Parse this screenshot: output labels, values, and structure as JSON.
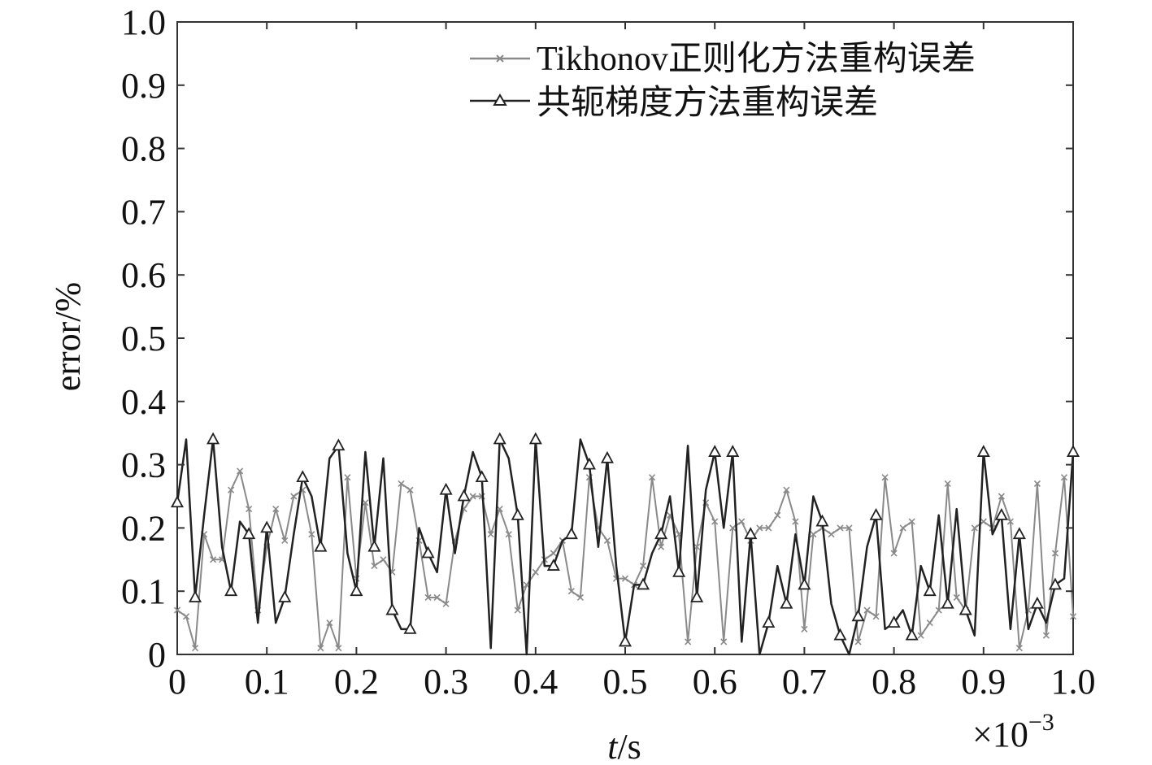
{
  "chart_data": {
    "type": "line",
    "xlabel_italic": "t",
    "xlabel_unit": "/s",
    "ylabel": "error/%",
    "x_multiplier": {
      "base": "×10",
      "exp": "−3"
    },
    "xlim": [
      0,
      1.0
    ],
    "ylim": [
      0,
      1.0
    ],
    "grid": false,
    "legend_position": "top-right",
    "x_ticks": [
      "0",
      "0.1",
      "0.2",
      "0.3",
      "0.4",
      "0.5",
      "0.6",
      "0.7",
      "0.8",
      "0.9",
      "1.0"
    ],
    "y_ticks": [
      "0",
      "0.1",
      "0.2",
      "0.3",
      "0.4",
      "0.5",
      "0.6",
      "0.7",
      "0.8",
      "0.9",
      "1.0"
    ],
    "series": [
      {
        "name": "Tikhonov正则化方法重构误差",
        "color": "#8a8a8a",
        "marker": "x",
        "x": [
          0,
          0.01,
          0.02,
          0.03,
          0.04,
          0.05,
          0.06,
          0.07,
          0.08,
          0.09,
          0.1,
          0.11,
          0.12,
          0.13,
          0.14,
          0.15,
          0.16,
          0.17,
          0.18,
          0.19,
          0.2,
          0.21,
          0.22,
          0.23,
          0.24,
          0.25,
          0.26,
          0.27,
          0.28,
          0.29,
          0.3,
          0.31,
          0.32,
          0.33,
          0.34,
          0.35,
          0.36,
          0.37,
          0.38,
          0.39,
          0.4,
          0.41,
          0.42,
          0.43,
          0.44,
          0.45,
          0.46,
          0.47,
          0.48,
          0.49,
          0.5,
          0.51,
          0.52,
          0.53,
          0.54,
          0.55,
          0.56,
          0.57,
          0.58,
          0.59,
          0.6,
          0.61,
          0.62,
          0.63,
          0.64,
          0.65,
          0.66,
          0.67,
          0.68,
          0.69,
          0.7,
          0.71,
          0.72,
          0.73,
          0.74,
          0.75,
          0.76,
          0.77,
          0.78,
          0.79,
          0.8,
          0.81,
          0.82,
          0.83,
          0.84,
          0.85,
          0.86,
          0.87,
          0.88,
          0.89,
          0.9,
          0.91,
          0.92,
          0.93,
          0.94,
          0.95,
          0.96,
          0.97,
          0.98,
          0.99,
          1.0
        ],
        "values": [
          0.07,
          0.06,
          0.01,
          0.19,
          0.15,
          0.15,
          0.26,
          0.29,
          0.23,
          0.07,
          0.17,
          0.23,
          0.18,
          0.25,
          0.26,
          0.19,
          0.01,
          0.05,
          0.01,
          0.28,
          0.12,
          0.24,
          0.14,
          0.15,
          0.13,
          0.27,
          0.26,
          0.18,
          0.09,
          0.09,
          0.08,
          0.18,
          0.23,
          0.25,
          0.25,
          0.19,
          0.23,
          0.19,
          0.07,
          0.11,
          0.13,
          0.15,
          0.16,
          0.18,
          0.1,
          0.09,
          0.28,
          0.2,
          0.18,
          0.12,
          0.12,
          0.11,
          0.14,
          0.28,
          0.17,
          0.22,
          0.19,
          0.02,
          0.17,
          0.24,
          0.21,
          0.02,
          0.2,
          0.21,
          0.18,
          0.2,
          0.2,
          0.22,
          0.26,
          0.21,
          0.04,
          0.19,
          0.2,
          0.19,
          0.2,
          0.2,
          0.02,
          0.07,
          0.06,
          0.28,
          0.16,
          0.2,
          0.21,
          0.03,
          0.05,
          0.07,
          0.27,
          0.09,
          0.07,
          0.2,
          0.21,
          0.2,
          0.25,
          0.21,
          0.01,
          0.07,
          0.27,
          0.03,
          0.16,
          0.28,
          0.06
        ]
      },
      {
        "name": "共轭梯度方法重构误差",
        "color": "#222222",
        "marker": "triangle",
        "x": [
          0,
          0.01,
          0.02,
          0.03,
          0.04,
          0.05,
          0.06,
          0.07,
          0.08,
          0.09,
          0.1,
          0.11,
          0.12,
          0.13,
          0.14,
          0.15,
          0.16,
          0.17,
          0.18,
          0.19,
          0.2,
          0.21,
          0.22,
          0.23,
          0.24,
          0.25,
          0.26,
          0.27,
          0.28,
          0.29,
          0.3,
          0.31,
          0.32,
          0.33,
          0.34,
          0.35,
          0.36,
          0.37,
          0.38,
          0.39,
          0.4,
          0.41,
          0.42,
          0.43,
          0.44,
          0.45,
          0.46,
          0.47,
          0.48,
          0.49,
          0.5,
          0.51,
          0.52,
          0.53,
          0.54,
          0.55,
          0.56,
          0.57,
          0.58,
          0.59,
          0.6,
          0.61,
          0.62,
          0.63,
          0.64,
          0.65,
          0.66,
          0.67,
          0.68,
          0.69,
          0.7,
          0.71,
          0.72,
          0.73,
          0.74,
          0.75,
          0.76,
          0.77,
          0.78,
          0.79,
          0.8,
          0.81,
          0.82,
          0.83,
          0.84,
          0.85,
          0.86,
          0.87,
          0.88,
          0.89,
          0.9,
          0.91,
          0.92,
          0.93,
          0.94,
          0.95,
          0.96,
          0.97,
          0.98,
          0.99,
          1.0
        ],
        "values": [
          0.24,
          0.34,
          0.09,
          0.22,
          0.34,
          0.17,
          0.1,
          0.21,
          0.19,
          0.05,
          0.2,
          0.05,
          0.09,
          0.19,
          0.28,
          0.25,
          0.17,
          0.31,
          0.33,
          0.16,
          0.1,
          0.32,
          0.17,
          0.31,
          0.07,
          0.04,
          0.04,
          0.2,
          0.16,
          0.13,
          0.26,
          0.16,
          0.25,
          0.32,
          0.28,
          0.01,
          0.34,
          0.31,
          0.22,
          0.0,
          0.34,
          0.14,
          0.14,
          0.18,
          0.19,
          0.34,
          0.3,
          0.17,
          0.31,
          0.14,
          0.02,
          0.11,
          0.11,
          0.16,
          0.19,
          0.25,
          0.13,
          0.33,
          0.09,
          0.26,
          0.32,
          0.2,
          0.32,
          0.02,
          0.19,
          0.0,
          0.05,
          0.14,
          0.08,
          0.19,
          0.11,
          0.25,
          0.21,
          0.08,
          0.03,
          0.0,
          0.06,
          0.17,
          0.22,
          0.04,
          0.05,
          0.07,
          0.03,
          0.14,
          0.1,
          0.22,
          0.08,
          0.23,
          0.07,
          0.03,
          0.32,
          0.19,
          0.22,
          0.04,
          0.19,
          0.04,
          0.08,
          0.05,
          0.11,
          0.12,
          0.32
        ]
      }
    ]
  }
}
